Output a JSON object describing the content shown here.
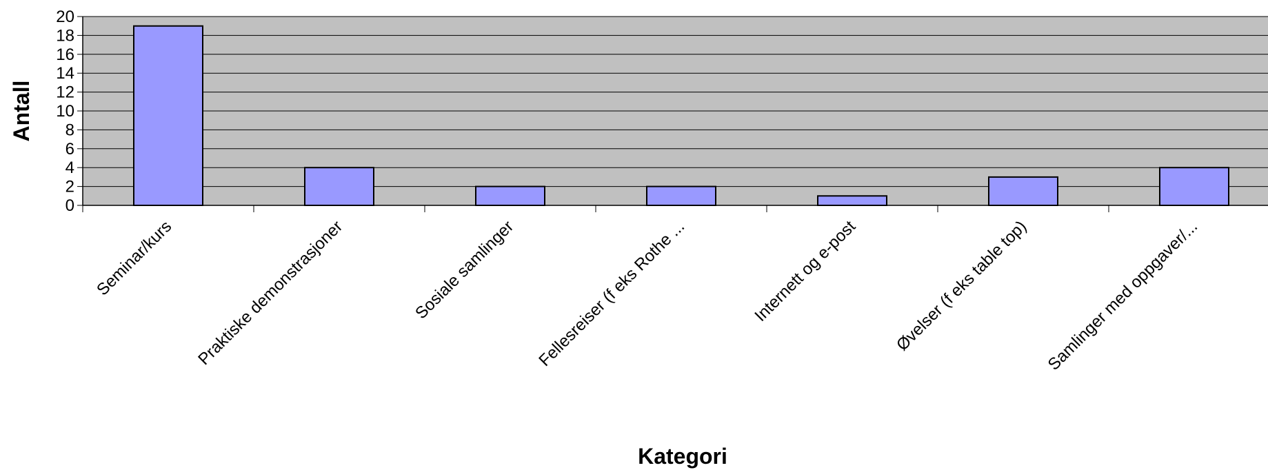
{
  "chart_data": {
    "type": "bar",
    "title": "",
    "xlabel": "Kategori",
    "ylabel": "Antall",
    "categories": [
      "Seminar/kurs",
      "Praktiske demonstrasjoner",
      "Sosiale samlinger",
      "Fellesreiser (f eks Rothe ...",
      "Internett og e-post",
      "Øvelser (f eks table top)",
      "Samlinger med oppgaver/..."
    ],
    "values": [
      19,
      4,
      2,
      2,
      1,
      3,
      4
    ],
    "ylim": [
      0,
      20
    ],
    "yticks": [
      0,
      2,
      4,
      6,
      8,
      10,
      12,
      14,
      16,
      18,
      20
    ],
    "grid": true,
    "legend": "none",
    "colors": {
      "bar_fill": "#9999ff",
      "bar_stroke": "#000000",
      "plot_background": "#c0c0c0",
      "gridline": "#000000"
    }
  }
}
